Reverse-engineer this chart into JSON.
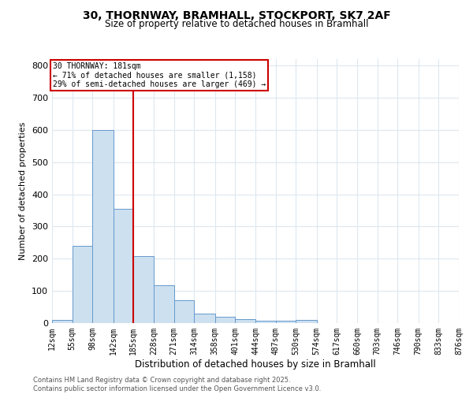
{
  "title1": "30, THORNWAY, BRAMHALL, STOCKPORT, SK7 2AF",
  "title2": "Size of property relative to detached houses in Bramhall",
  "xlabel": "Distribution of detached houses by size in Bramhall",
  "ylabel": "Number of detached properties",
  "bin_edges": [
    12,
    55,
    98,
    142,
    185,
    228,
    271,
    314,
    358,
    401,
    444,
    487,
    530,
    574,
    617,
    660,
    703,
    746,
    790,
    833,
    876
  ],
  "bar_heights": [
    10,
    240,
    600,
    355,
    207,
    117,
    72,
    30,
    20,
    13,
    8,
    8,
    10,
    0,
    0,
    0,
    0,
    0,
    0,
    0
  ],
  "bar_color": "#cce0f0",
  "bar_edge_color": "#6699cc",
  "property_line_x": 185,
  "property_line_color": "#cc0000",
  "annotation_title": "30 THORNWAY: 181sqm",
  "annotation_line1": "← 71% of detached houses are smaller (1,158)",
  "annotation_line2": "29% of semi-detached houses are larger (469) →",
  "annotation_box_color": "#cc0000",
  "ylim": [
    0,
    820
  ],
  "yticks": [
    0,
    100,
    200,
    300,
    400,
    500,
    600,
    700,
    800
  ],
  "tick_labels": [
    "12sqm",
    "55sqm",
    "98sqm",
    "142sqm",
    "185sqm",
    "228sqm",
    "271sqm",
    "314sqm",
    "358sqm",
    "401sqm",
    "444sqm",
    "487sqm",
    "530sqm",
    "574sqm",
    "617sqm",
    "660sqm",
    "703sqm",
    "746sqm",
    "790sqm",
    "833sqm",
    "876sqm"
  ],
  "bg_color": "#ffffff",
  "grid_color": "#dde8f0",
  "footer_line1": "Contains HM Land Registry data © Crown copyright and database right 2025.",
  "footer_line2": "Contains public sector information licensed under the Open Government Licence v3.0."
}
